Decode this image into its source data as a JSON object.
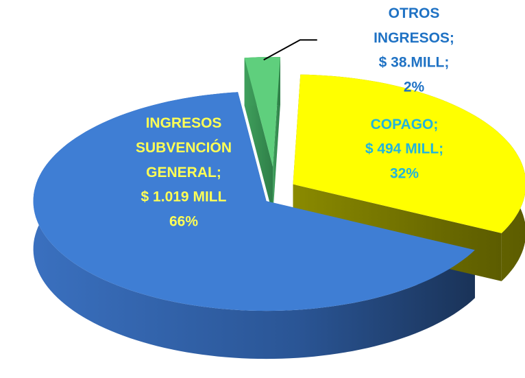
{
  "chart_data": {
    "type": "pie3d",
    "categories": [
      "INGRESOS SUBVENCIÓN GENERAL;",
      "COPAGO;",
      "OTROS INGRESOS;"
    ],
    "values": [
      1019,
      494,
      38
    ],
    "value_labels": [
      "$ 1.019 MILL",
      "$ 494 MILL;",
      "$ 38.MILL;"
    ],
    "percent_labels": [
      "66%",
      "32%",
      "2%"
    ],
    "colors": [
      "#3f7ed4",
      "#ffff00",
      "#5fcf7d"
    ]
  }
}
